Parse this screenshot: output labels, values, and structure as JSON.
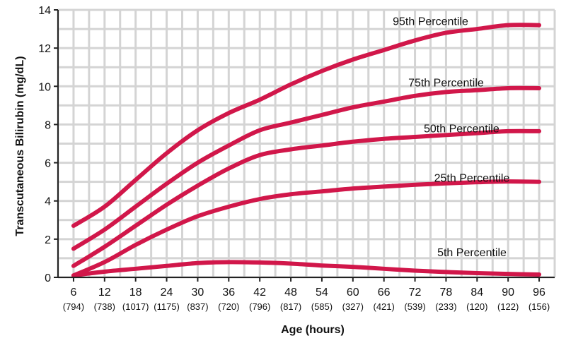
{
  "chart_data": {
    "type": "line",
    "title": "",
    "xlabel": "Age (hours)",
    "ylabel": "Transcutaneous Bilirubin (mg/dL)",
    "xlim": [
      6,
      96
    ],
    "ylim": [
      0,
      14
    ],
    "grid": true,
    "line_color": "#d1174a",
    "y_ticks": [
      "0",
      "2",
      "4",
      "6",
      "8",
      "10",
      "12",
      "14"
    ],
    "x_ticks": [
      {
        "label": "6",
        "n": "(794)"
      },
      {
        "label": "12",
        "n": "(738)"
      },
      {
        "label": "18",
        "n": "(1017)"
      },
      {
        "label": "24",
        "n": "(1175)"
      },
      {
        "label": "30",
        "n": "(837)"
      },
      {
        "label": "36",
        "n": "(720)"
      },
      {
        "label": "42",
        "n": "(796)"
      },
      {
        "label": "48",
        "n": "(817)"
      },
      {
        "label": "54",
        "n": "(585)"
      },
      {
        "label": "60",
        "n": "(327)"
      },
      {
        "label": "66",
        "n": "(421)"
      },
      {
        "label": "72",
        "n": "(539)"
      },
      {
        "label": "78",
        "n": "(233)"
      },
      {
        "label": "84",
        "n": "(120)"
      },
      {
        "label": "90",
        "n": "(122)"
      },
      {
        "label": "96",
        "n": "(156)"
      }
    ],
    "series": [
      {
        "name": "95th Percentile",
        "points": [
          [
            6,
            2.7
          ],
          [
            12,
            3.7
          ],
          [
            18,
            5.1
          ],
          [
            24,
            6.5
          ],
          [
            30,
            7.7
          ],
          [
            36,
            8.6
          ],
          [
            42,
            9.3
          ],
          [
            48,
            10.1
          ],
          [
            54,
            10.8
          ],
          [
            60,
            11.4
          ],
          [
            66,
            11.9
          ],
          [
            72,
            12.4
          ],
          [
            78,
            12.8
          ],
          [
            84,
            13.0
          ],
          [
            90,
            13.2
          ],
          [
            96,
            13.2
          ]
        ]
      },
      {
        "name": "75th Percentile",
        "points": [
          [
            6,
            1.5
          ],
          [
            12,
            2.5
          ],
          [
            18,
            3.7
          ],
          [
            24,
            4.9
          ],
          [
            30,
            6.0
          ],
          [
            36,
            6.9
          ],
          [
            42,
            7.7
          ],
          [
            48,
            8.1
          ],
          [
            54,
            8.5
          ],
          [
            60,
            8.9
          ],
          [
            66,
            9.2
          ],
          [
            72,
            9.5
          ],
          [
            78,
            9.7
          ],
          [
            84,
            9.8
          ],
          [
            90,
            9.9
          ],
          [
            96,
            9.9
          ]
        ]
      },
      {
        "name": "50th Percentile",
        "points": [
          [
            6,
            0.6
          ],
          [
            12,
            1.6
          ],
          [
            18,
            2.7
          ],
          [
            24,
            3.8
          ],
          [
            30,
            4.8
          ],
          [
            36,
            5.7
          ],
          [
            42,
            6.4
          ],
          [
            48,
            6.7
          ],
          [
            54,
            6.9
          ],
          [
            60,
            7.1
          ],
          [
            66,
            7.25
          ],
          [
            72,
            7.35
          ],
          [
            78,
            7.45
          ],
          [
            84,
            7.55
          ],
          [
            90,
            7.65
          ],
          [
            96,
            7.65
          ]
        ]
      },
      {
        "name": "25th Percentile",
        "points": [
          [
            6,
            0.1
          ],
          [
            12,
            0.8
          ],
          [
            18,
            1.7
          ],
          [
            24,
            2.5
          ],
          [
            30,
            3.2
          ],
          [
            36,
            3.7
          ],
          [
            42,
            4.1
          ],
          [
            48,
            4.35
          ],
          [
            54,
            4.5
          ],
          [
            60,
            4.65
          ],
          [
            66,
            4.75
          ],
          [
            72,
            4.85
          ],
          [
            78,
            4.92
          ],
          [
            84,
            4.98
          ],
          [
            90,
            5.02
          ],
          [
            96,
            5.0
          ]
        ]
      },
      {
        "name": "5th Percentile",
        "points": [
          [
            6,
            0.1
          ],
          [
            12,
            0.3
          ],
          [
            18,
            0.45
          ],
          [
            24,
            0.6
          ],
          [
            30,
            0.75
          ],
          [
            36,
            0.8
          ],
          [
            42,
            0.78
          ],
          [
            48,
            0.72
          ],
          [
            54,
            0.62
          ],
          [
            60,
            0.55
          ],
          [
            66,
            0.45
          ],
          [
            72,
            0.35
          ],
          [
            78,
            0.28
          ],
          [
            84,
            0.22
          ],
          [
            90,
            0.18
          ],
          [
            96,
            0.15
          ]
        ]
      }
    ]
  }
}
